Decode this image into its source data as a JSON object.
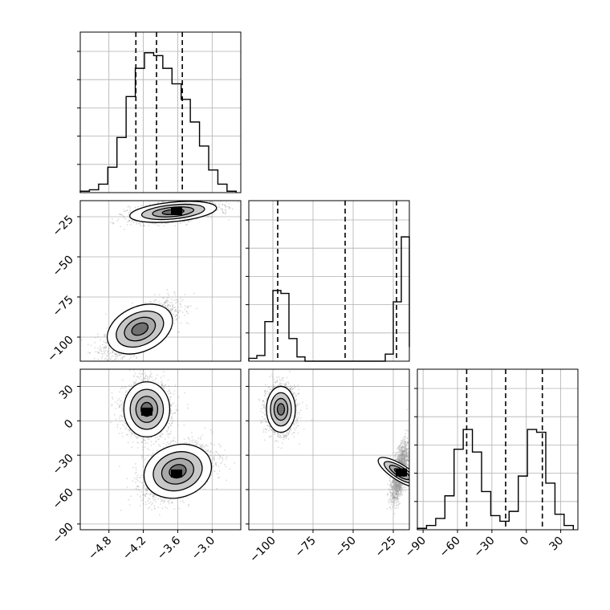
{
  "chart_data": {
    "type": "corner",
    "grid": true,
    "colors": {
      "line": "#000000",
      "grid": "#b0b0b0",
      "scatter": "#9a9a9a",
      "fill_dark": "#000000",
      "fill_mid": "#707070",
      "fill_light": "#c8c8c8"
    },
    "params": [
      {
        "range": [
          -5.3,
          -2.5
        ],
        "ticks": [
          -4.8,
          -4.2,
          -3.6,
          -3.0
        ],
        "tick_labels": [
          "−4.8",
          "−4.2",
          "−3.6",
          "−3.0"
        ]
      },
      {
        "range": [
          -115,
          -15
        ],
        "ticks": [
          -100,
          -75,
          -50,
          -25
        ],
        "tick_labels": [
          "−100",
          "−75",
          "−50",
          "−25"
        ]
      },
      {
        "range": [
          -95,
          45
        ],
        "ticks": [
          -90,
          -60,
          -30,
          0,
          30
        ],
        "tick_labels": [
          "−90",
          "−60",
          "−30",
          "0",
          "30"
        ]
      }
    ],
    "histograms": [
      {
        "param": 0,
        "ylim": [
          0,
          100
        ],
        "edges": [
          -5.3,
          -5.14,
          -4.98,
          -4.82,
          -4.66,
          -4.5,
          -4.34,
          -4.18,
          -4.02,
          -3.86,
          -3.7,
          -3.54,
          -3.38,
          -3.22,
          -3.06,
          -2.9,
          -2.74,
          -2.58
        ],
        "counts": [
          1,
          2,
          6,
          18,
          39,
          68,
          88,
          99,
          97,
          88,
          77,
          66,
          50,
          33,
          16,
          6,
          1
        ],
        "quantiles": [
          -4.33,
          -3.97,
          -3.52
        ]
      },
      {
        "param": 1,
        "ylim": [
          0,
          100
        ],
        "edges": [
          -115,
          -110,
          -105,
          -100,
          -95,
          -90,
          -85,
          -80,
          -75,
          -70,
          -65,
          -60,
          -55,
          -50,
          -45,
          -40,
          -35,
          -30,
          -25,
          -20,
          -15
        ],
        "counts": [
          2,
          4,
          28,
          50,
          48,
          16,
          3,
          0,
          0,
          0,
          0,
          0,
          0,
          0,
          0,
          0,
          0,
          5,
          42,
          88,
          10
        ],
        "quantiles": [
          -97,
          -55,
          -23
        ]
      },
      {
        "param": 2,
        "ylim": [
          0,
          100
        ],
        "edges": [
          -95,
          -87,
          -79,
          -71,
          -63,
          -55,
          -47,
          -39,
          -31,
          -23,
          -15,
          -7,
          1,
          9,
          17,
          25,
          33,
          41
        ],
        "counts": [
          1,
          3,
          8,
          24,
          57,
          71,
          55,
          27,
          10,
          6,
          13,
          38,
          71,
          69,
          33,
          11,
          3
        ],
        "quantiles": [
          -52,
          -18,
          14
        ]
      }
    ],
    "panels_2d": [
      {
        "x": 0,
        "y": 1,
        "clusters": [
          {
            "center": [
              -4.26,
              -95
            ],
            "spread": [
              0.3,
              8
            ],
            "corr": 0.7,
            "n": 2200
          },
          {
            "center": [
              -3.68,
              -22
            ],
            "spread": [
              0.38,
              3.2
            ],
            "corr": 0.45,
            "n": 1600
          }
        ],
        "peaks": [
          [
            -3.62,
            -21.5
          ]
        ]
      },
      {
        "x": 0,
        "y": 2,
        "clusters": [
          {
            "center": [
              -4.14,
              10
            ],
            "spread": [
              0.2,
              12
            ],
            "corr": 0.0,
            "n": 2200
          },
          {
            "center": [
              -3.6,
              -44
            ],
            "spread": [
              0.3,
              12
            ],
            "corr": 0.45,
            "n": 2200
          }
        ],
        "peaks": [
          [
            -4.14,
            8
          ],
          [
            -3.62,
            -46
          ]
        ]
      },
      {
        "x": 1,
        "y": 2,
        "clusters": [
          {
            "center": [
              -95,
              10
            ],
            "spread": [
              4.5,
              10
            ],
            "corr": 0.0,
            "n": 2000
          },
          {
            "center": [
              -21,
              -45
            ],
            "spread": [
              2.5,
              12
            ],
            "corr": 0.6,
            "n": 1800
          }
        ],
        "peaks": [
          [
            -20,
            -45
          ]
        ]
      }
    ]
  }
}
